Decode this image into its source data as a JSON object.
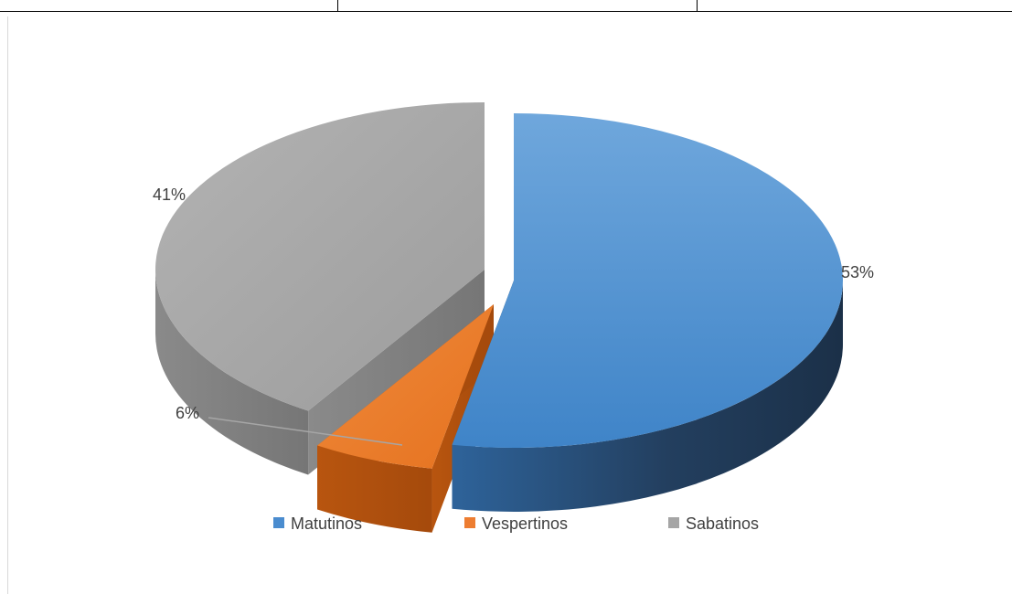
{
  "chart_data": {
    "type": "pie",
    "style": "3d-exploded",
    "categories": [
      "Matutinos",
      "Vespertinos",
      "Sabatinos"
    ],
    "values": [
      53,
      6,
      41
    ],
    "labels": [
      "53%",
      "6%",
      "41%"
    ],
    "colors": [
      "#4a8ccf",
      "#ed7d31",
      "#a5a5a5"
    ],
    "legend_position": "bottom"
  }
}
